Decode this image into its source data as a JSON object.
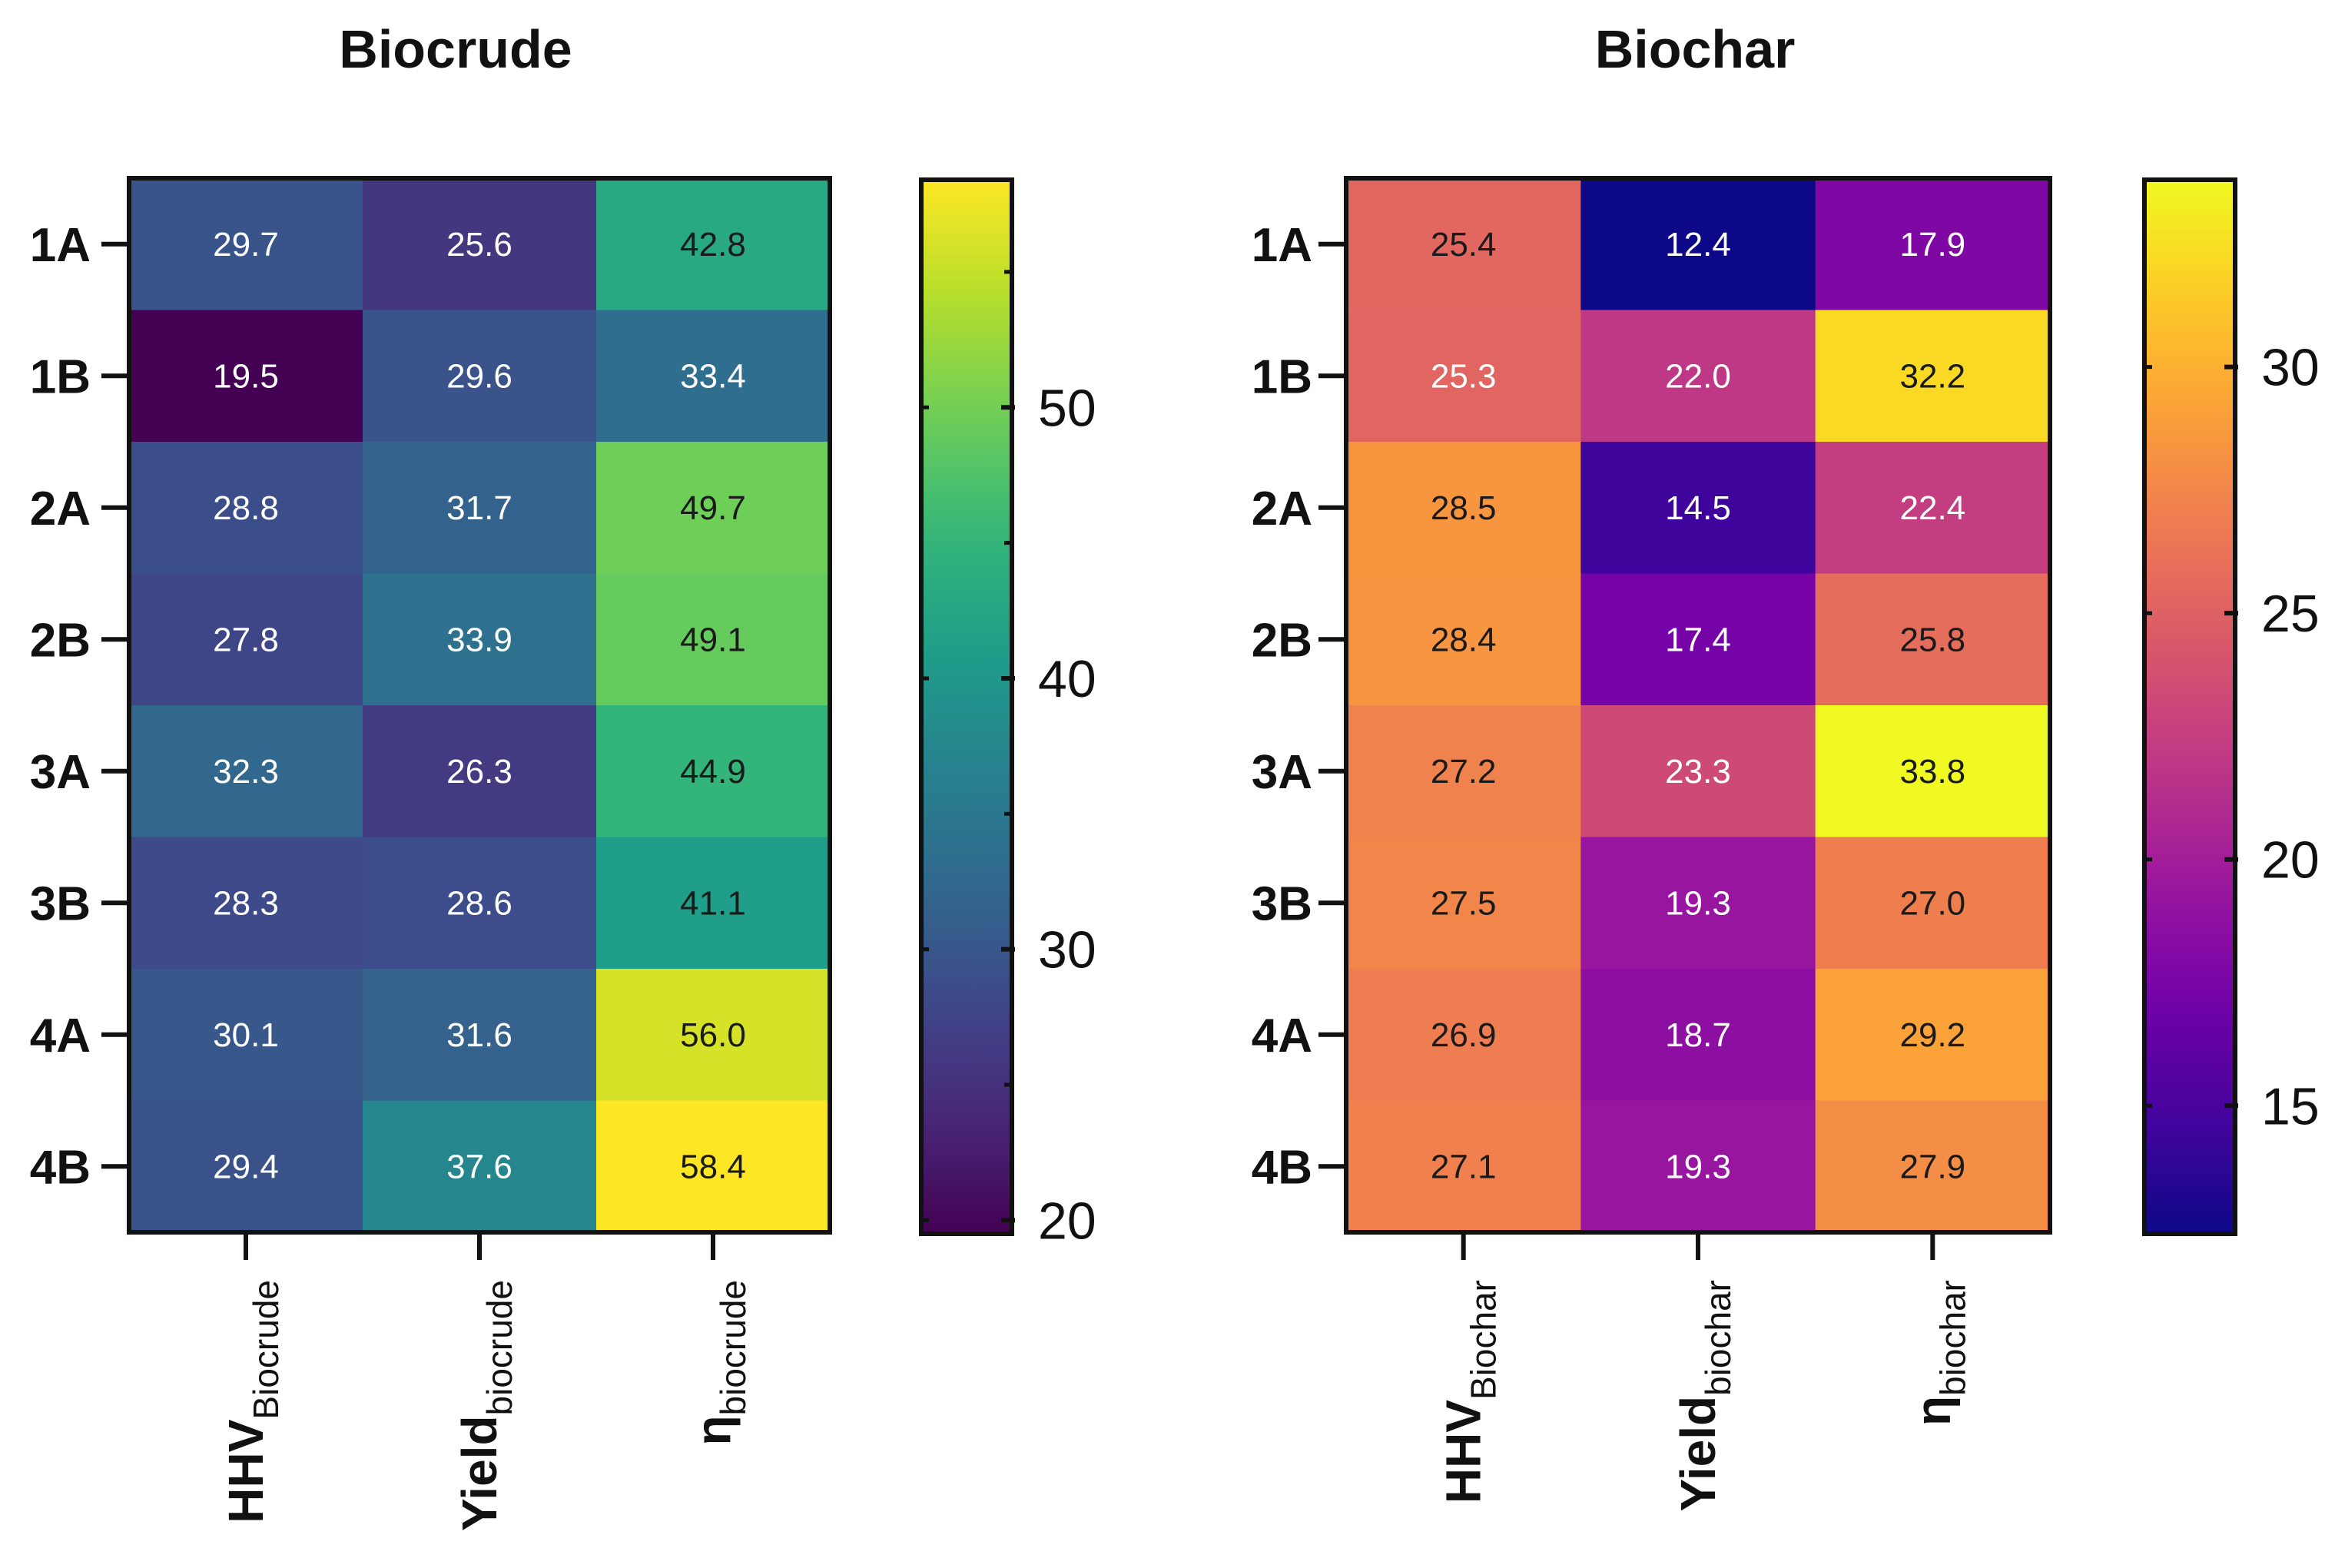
{
  "chart_data": [
    {
      "type": "heatmap",
      "title": "Biocrude",
      "rows": [
        "1A",
        "1B",
        "2A",
        "2B",
        "3A",
        "3B",
        "4A",
        "4B"
      ],
      "columns": [
        {
          "main": "HHV",
          "sub": "Biocrude"
        },
        {
          "main": "Yield",
          "sub": "biocrude"
        },
        {
          "main": "η",
          "sub": "biocrude"
        }
      ],
      "values": [
        [
          29.7,
          25.6,
          42.8
        ],
        [
          19.5,
          29.6,
          33.4
        ],
        [
          28.8,
          31.7,
          49.7
        ],
        [
          27.8,
          33.9,
          49.1
        ],
        [
          32.3,
          26.3,
          44.9
        ],
        [
          28.3,
          28.6,
          41.1
        ],
        [
          30.1,
          31.6,
          56.0
        ],
        [
          29.4,
          37.6,
          58.4
        ]
      ],
      "value_labels": [
        [
          "29.7",
          "25.6",
          "42.8"
        ],
        [
          "19.5",
          "29.6",
          "33.4"
        ],
        [
          "28.8",
          "31.7",
          "49.7"
        ],
        [
          "27.8",
          "33.9",
          "49.1"
        ],
        [
          "32.3",
          "26.3",
          "44.9"
        ],
        [
          "28.3",
          "28.6",
          "41.1"
        ],
        [
          "30.1",
          "31.6",
          "56.0"
        ],
        [
          "29.4",
          "37.6",
          "58.4"
        ]
      ],
      "colormap": "viridis",
      "colorbar": {
        "range": [
          19.5,
          58.4
        ],
        "ticks": [
          20,
          30,
          40,
          50
        ],
        "tick_labels": [
          "20",
          "30",
          "40",
          "50"
        ],
        "minor_ticks": [
          25,
          35,
          45,
          55
        ]
      },
      "legend_position": "right"
    },
    {
      "type": "heatmap",
      "title": "Biochar",
      "rows": [
        "1A",
        "1B",
        "2A",
        "2B",
        "3A",
        "3B",
        "4A",
        "4B"
      ],
      "columns": [
        {
          "main": "HHV",
          "sub": "Biochar"
        },
        {
          "main": "Yield",
          "sub": "biochar"
        },
        {
          "main": "η",
          "sub": "biochar"
        }
      ],
      "values": [
        [
          25.4,
          12.4,
          17.9
        ],
        [
          25.3,
          22.0,
          32.2
        ],
        [
          28.5,
          14.5,
          22.4
        ],
        [
          28.4,
          17.4,
          25.8
        ],
        [
          27.2,
          23.3,
          33.8
        ],
        [
          27.5,
          19.3,
          27.0
        ],
        [
          26.9,
          18.7,
          29.2
        ],
        [
          27.1,
          19.3,
          27.9
        ]
      ],
      "value_labels": [
        [
          "25.4",
          "12.4",
          "17.9"
        ],
        [
          "25.3",
          "22.0",
          "32.2"
        ],
        [
          "28.5",
          "14.5",
          "22.4"
        ],
        [
          "28.4",
          "17.4",
          "25.8"
        ],
        [
          "27.2",
          "23.3",
          "33.8"
        ],
        [
          "27.5",
          "19.3",
          "27.0"
        ],
        [
          "26.9",
          "18.7",
          "29.2"
        ],
        [
          "27.1",
          "19.3",
          "27.9"
        ]
      ],
      "colormap": "plasma",
      "colorbar": {
        "range": [
          12.4,
          33.8
        ],
        "ticks": [
          15,
          20,
          25,
          30
        ],
        "tick_labels": [
          "15",
          "20",
          "25",
          "30"
        ],
        "minor_ticks": []
      },
      "legend_position": "right"
    }
  ]
}
